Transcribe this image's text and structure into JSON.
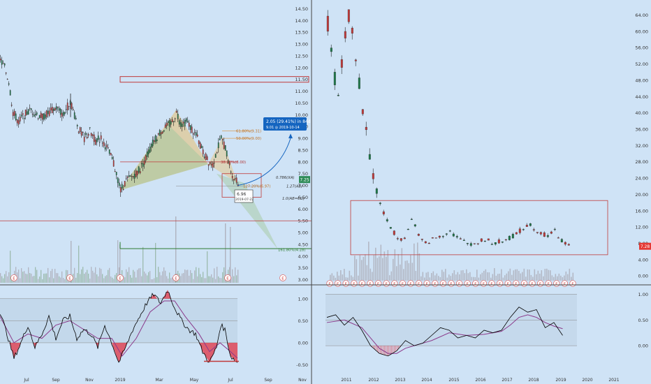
{
  "colors": {
    "background": "#cfe3f6",
    "bull": "#1f7a4a",
    "bear": "#c03a3a",
    "volume": "#a9a9b4",
    "volume_up": "#8fb09c",
    "volume_down": "#c08a8a",
    "osc_line": "#000000",
    "osc_signal": "#8b3a8b",
    "osc_fill_neg": "#e03040",
    "pattern_fill_yellow": "#e8c070",
    "pattern_fill_green": "#a6c9a0",
    "projection": "#1565c0",
    "price_tag_green": "#2e8b57",
    "price_tag_red": "#e53935"
  },
  "chart_data": [
    {
      "type": "candlestick",
      "panel": "left-daily",
      "y_ticks": [
        "14.50",
        "14.00",
        "13.50",
        "13.00",
        "12.50",
        "12.00",
        "11.50",
        "11.00",
        "10.50",
        "10.00",
        "9.50",
        "9.00",
        "8.50",
        "8.00",
        "7.50",
        "7.00",
        "6.50",
        "6.00",
        "5.50",
        "5.00",
        "4.50",
        "4.00",
        "3.50",
        "3.00"
      ],
      "ylim": [
        2.9,
        14.75
      ],
      "x_ticks": [
        "Jul",
        "Sep",
        "Nov",
        "2019",
        "Mar",
        "May",
        "Jul",
        "Sep",
        "Nov"
      ],
      "price_tag": "7.25",
      "close_path": [
        [
          0,
          12.3
        ],
        [
          6,
          12.0
        ],
        [
          12,
          11.4
        ],
        [
          18,
          10.1
        ],
        [
          26,
          9.7
        ],
        [
          34,
          10.0
        ],
        [
          44,
          10.2
        ],
        [
          52,
          10.0
        ],
        [
          60,
          9.9
        ],
        [
          70,
          10.1
        ],
        [
          80,
          10.3
        ],
        [
          90,
          10.0
        ],
        [
          100,
          10.6
        ],
        [
          106,
          10.0
        ],
        [
          112,
          9.4
        ],
        [
          120,
          9.0
        ],
        [
          128,
          9.3
        ],
        [
          136,
          8.9
        ],
        [
          144,
          9.0
        ],
        [
          152,
          8.6
        ],
        [
          160,
          8.1
        ],
        [
          166,
          7.5
        ],
        [
          172,
          6.8
        ],
        [
          180,
          7.2
        ],
        [
          190,
          7.4
        ],
        [
          200,
          7.7
        ],
        [
          210,
          8.3
        ],
        [
          220,
          8.9
        ],
        [
          230,
          9.3
        ],
        [
          238,
          9.5
        ],
        [
          246,
          9.7
        ],
        [
          252,
          10.1
        ],
        [
          258,
          9.6
        ],
        [
          266,
          9.7
        ],
        [
          274,
          9.4
        ],
        [
          282,
          9.0
        ],
        [
          290,
          8.4
        ],
        [
          298,
          8.0
        ],
        [
          304,
          7.9
        ],
        [
          310,
          8.5
        ],
        [
          316,
          9.0
        ],
        [
          322,
          8.6
        ],
        [
          328,
          7.8
        ],
        [
          334,
          7.3
        ],
        [
          340,
          7.1
        ]
      ],
      "annotations": {
        "projection_label": "2.05 (29.41%) in 84d",
        "projection_sub": "9.01  ◎ 2019-10-14",
        "fib_618": "61.80%(9.31)",
        "fib_500": "50.00%(9.00)",
        "fib_382": "38.20%(8.00)",
        "xa": "0.786(XA)",
        "ab_127": "127.20%(6.97)",
        "ab_127b": "1.27(AB)",
        "abcd": "1.0(AB=CD)",
        "fib_618_low": "161.80%(4.28)",
        "tooltip_price": "6.96",
        "tooltip_date": "2019-07-22"
      },
      "earnings_markers": [
        "E",
        "E",
        "E",
        "E",
        "E",
        "E"
      ],
      "oscillator": {
        "y_ticks": [
          "1.00",
          "0.50",
          "0.00",
          "-0.50"
        ],
        "ylim": [
          -0.65,
          1.25
        ],
        "line": [
          [
            0,
            0.7
          ],
          [
            10,
            0.2
          ],
          [
            20,
            -0.35
          ],
          [
            30,
            0.0
          ],
          [
            40,
            0.4
          ],
          [
            50,
            -0.1
          ],
          [
            60,
            0.2
          ],
          [
            70,
            0.6
          ],
          [
            80,
            0.1
          ],
          [
            90,
            0.5
          ],
          [
            100,
            0.6
          ],
          [
            110,
            0.1
          ],
          [
            120,
            0.3
          ],
          [
            130,
            0.2
          ],
          [
            140,
            -0.1
          ],
          [
            150,
            0.4
          ],
          [
            160,
            0.0
          ],
          [
            170,
            -0.45
          ],
          [
            180,
            -0.1
          ],
          [
            190,
            0.3
          ],
          [
            200,
            0.6
          ],
          [
            210,
            0.9
          ],
          [
            220,
            1.1
          ],
          [
            230,
            0.9
          ],
          [
            240,
            1.2
          ],
          [
            250,
            0.8
          ],
          [
            260,
            0.5
          ],
          [
            270,
            0.3
          ],
          [
            280,
            0.2
          ],
          [
            290,
            -0.2
          ],
          [
            300,
            -0.45
          ],
          [
            310,
            -0.1
          ],
          [
            316,
            0.4
          ],
          [
            322,
            0.3
          ],
          [
            330,
            -0.3
          ],
          [
            340,
            -0.45
          ]
        ],
        "signal": [
          [
            0,
            0.6
          ],
          [
            20,
            0.0
          ],
          [
            40,
            0.2
          ],
          [
            60,
            0.1
          ],
          [
            80,
            0.4
          ],
          [
            100,
            0.5
          ],
          [
            120,
            0.3
          ],
          [
            140,
            0.1
          ],
          [
            160,
            0.1
          ],
          [
            175,
            -0.3
          ],
          [
            195,
            0.1
          ],
          [
            215,
            0.7
          ],
          [
            235,
            0.95
          ],
          [
            250,
            0.95
          ],
          [
            265,
            0.6
          ],
          [
            285,
            0.2
          ],
          [
            300,
            -0.2
          ],
          [
            315,
            0.0
          ],
          [
            330,
            -0.2
          ],
          [
            340,
            -0.35
          ]
        ]
      }
    },
    {
      "type": "candlestick",
      "panel": "right-monthly",
      "y_ticks": [
        "64.00",
        "60.00",
        "56.00",
        "52.00",
        "48.00",
        "44.00",
        "40.00",
        "36.00",
        "32.00",
        "28.00",
        "24.00",
        "20.00",
        "16.00",
        "12.00",
        "8.00",
        "4.00",
        "0.00"
      ],
      "ylim": [
        -1.5,
        67
      ],
      "x_ticks": [
        "2011",
        "2012",
        "2013",
        "2014",
        "2015",
        "2016",
        "2017",
        "2018",
        "2019",
        "2020",
        "2021"
      ],
      "price_tag": "7.28",
      "close_path": [
        [
          0,
          62
        ],
        [
          0.3,
          50
        ],
        [
          0.6,
          45
        ],
        [
          0.9,
          56
        ],
        [
          1.2,
          64
        ],
        [
          1.5,
          58
        ],
        [
          1.8,
          47
        ],
        [
          2.1,
          38
        ],
        [
          2.4,
          30
        ],
        [
          2.7,
          22
        ],
        [
          3.0,
          18
        ],
        [
          3.3,
          14
        ],
        [
          3.6,
          12
        ],
        [
          3.9,
          10
        ],
        [
          4.2,
          9
        ],
        [
          4.5,
          10
        ],
        [
          4.8,
          14
        ],
        [
          5.0,
          12
        ],
        [
          5.3,
          9
        ],
        [
          5.6,
          8
        ],
        [
          6.0,
          9
        ],
        [
          6.5,
          10
        ],
        [
          7.0,
          11
        ],
        [
          7.5,
          9
        ],
        [
          8.0,
          8
        ],
        [
          8.5,
          8
        ],
        [
          9.0,
          9
        ],
        [
          9.5,
          8
        ],
        [
          10.0,
          8.5
        ],
        [
          10.5,
          9.5
        ],
        [
          11.0,
          11
        ],
        [
          11.5,
          13
        ],
        [
          12.0,
          11
        ],
        [
          12.5,
          10
        ],
        [
          13.0,
          11
        ],
        [
          13.3,
          9
        ],
        [
          13.6,
          8
        ],
        [
          13.9,
          7.3
        ]
      ],
      "earnings_markers": [
        "E",
        "E",
        "E",
        "E",
        "E",
        "E",
        "E",
        "E",
        "E",
        "E",
        "E",
        "E",
        "E",
        "E",
        "E",
        "E",
        "E",
        "E",
        "E",
        "E",
        "E",
        "E",
        "E",
        "E",
        "E",
        "E",
        "E",
        "E",
        "E",
        "E",
        "E"
      ],
      "oscillator": {
        "y_ticks": [
          "1.00",
          "0.50",
          "0.00"
        ],
        "ylim": [
          -0.5,
          1.1
        ],
        "line": [
          [
            0,
            0.55
          ],
          [
            0.5,
            0.6
          ],
          [
            1.0,
            0.4
          ],
          [
            1.5,
            0.55
          ],
          [
            2.0,
            0.3
          ],
          [
            2.5,
            0.0
          ],
          [
            3.0,
            -0.15
          ],
          [
            3.5,
            -0.2
          ],
          [
            4.0,
            -0.1
          ],
          [
            4.5,
            0.1
          ],
          [
            5.0,
            0.0
          ],
          [
            5.5,
            0.05
          ],
          [
            6.0,
            0.2
          ],
          [
            6.5,
            0.35
          ],
          [
            7.0,
            0.3
          ],
          [
            7.5,
            0.15
          ],
          [
            8.0,
            0.2
          ],
          [
            8.5,
            0.15
          ],
          [
            9.0,
            0.3
          ],
          [
            9.5,
            0.25
          ],
          [
            10.0,
            0.3
          ],
          [
            10.5,
            0.55
          ],
          [
            11.0,
            0.75
          ],
          [
            11.5,
            0.65
          ],
          [
            12.0,
            0.7
          ],
          [
            12.5,
            0.35
          ],
          [
            13.0,
            0.45
          ],
          [
            13.5,
            0.2
          ]
        ],
        "signal": [
          [
            0,
            0.45
          ],
          [
            1.0,
            0.5
          ],
          [
            2.0,
            0.35
          ],
          [
            2.5,
            0.15
          ],
          [
            3.0,
            -0.05
          ],
          [
            3.5,
            -0.15
          ],
          [
            4.0,
            -0.15
          ],
          [
            4.5,
            -0.05
          ],
          [
            5.0,
            0.0
          ],
          [
            5.5,
            0.05
          ],
          [
            6.0,
            0.1
          ],
          [
            7.0,
            0.25
          ],
          [
            8.0,
            0.2
          ],
          [
            9.0,
            0.22
          ],
          [
            10.0,
            0.28
          ],
          [
            10.5,
            0.4
          ],
          [
            11.0,
            0.55
          ],
          [
            11.5,
            0.6
          ],
          [
            12.0,
            0.55
          ],
          [
            12.5,
            0.45
          ],
          [
            13.0,
            0.38
          ],
          [
            13.5,
            0.33
          ]
        ]
      }
    }
  ]
}
